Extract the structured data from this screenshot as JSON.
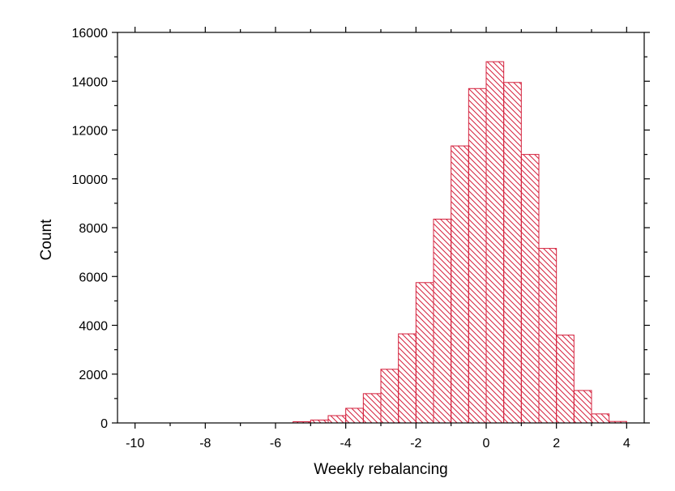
{
  "chart_data": {
    "type": "bar",
    "subtype": "histogram",
    "xlabel": "Weekly rebalancing",
    "ylabel": "Count",
    "xlim": [
      -10.5,
      4.5
    ],
    "ylim": [
      0,
      16000
    ],
    "xticks": [
      -10,
      -8,
      -6,
      -4,
      -2,
      0,
      2,
      4
    ],
    "yticks": [
      0,
      2000,
      4000,
      6000,
      8000,
      10000,
      12000,
      14000,
      16000
    ],
    "bin_width": 0.5,
    "bins": [
      {
        "x0": -5.5,
        "x1": -5.0,
        "count": 50
      },
      {
        "x0": -5.0,
        "x1": -4.5,
        "count": 120
      },
      {
        "x0": -4.5,
        "x1": -4.0,
        "count": 300
      },
      {
        "x0": -4.0,
        "x1": -3.5,
        "count": 600
      },
      {
        "x0": -3.5,
        "x1": -3.0,
        "count": 1200
      },
      {
        "x0": -3.0,
        "x1": -2.5,
        "count": 2200
      },
      {
        "x0": -2.5,
        "x1": -2.0,
        "count": 3650
      },
      {
        "x0": -2.0,
        "x1": -1.5,
        "count": 5750
      },
      {
        "x0": -1.5,
        "x1": -1.0,
        "count": 8350
      },
      {
        "x0": -1.0,
        "x1": -0.5,
        "count": 11350
      },
      {
        "x0": -0.5,
        "x1": 0.0,
        "count": 13700
      },
      {
        "x0": 0.0,
        "x1": 0.5,
        "count": 14800
      },
      {
        "x0": 0.5,
        "x1": 1.0,
        "count": 13950
      },
      {
        "x0": 1.0,
        "x1": 1.5,
        "count": 11000
      },
      {
        "x0": 1.5,
        "x1": 2.0,
        "count": 7150
      },
      {
        "x0": 2.0,
        "x1": 2.5,
        "count": 3600
      },
      {
        "x0": 2.5,
        "x1": 3.0,
        "count": 1330
      },
      {
        "x0": 3.0,
        "x1": 3.5,
        "count": 370
      },
      {
        "x0": 3.5,
        "x1": 4.0,
        "count": 60
      }
    ],
    "bar_fill": "hatched",
    "bar_color": "#d4213d",
    "grid": false,
    "legend": "none"
  }
}
